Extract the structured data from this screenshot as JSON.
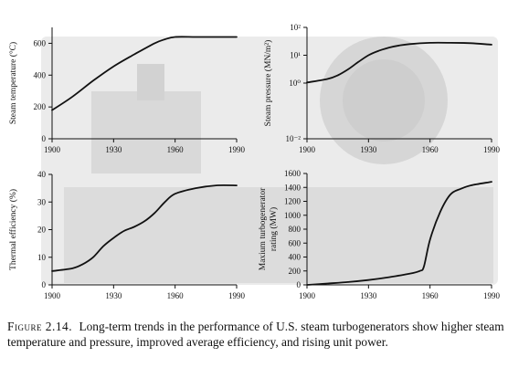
{
  "chart_data": [
    {
      "type": "line",
      "title": "",
      "xlabel": "",
      "ylabel": "Steam temperature (°C)",
      "xlim": [
        1900,
        1990
      ],
      "ylim": [
        0,
        700
      ],
      "x_ticks": [
        "1900",
        "1930",
        "1960",
        "1990"
      ],
      "y_ticks": [
        "0",
        "200",
        "400",
        "600"
      ],
      "series": [
        {
          "x": [
            1900,
            1910,
            1920,
            1930,
            1940,
            1950,
            1955,
            1960,
            1970,
            1980,
            1990
          ],
          "y": [
            180,
            265,
            365,
            455,
            530,
            600,
            625,
            640,
            640,
            640,
            640
          ]
        }
      ]
    },
    {
      "type": "line",
      "scale_y": "log",
      "title": "",
      "xlabel": "",
      "ylabel": "Steam pressure (MN/m²)",
      "xlim": [
        1900,
        1990
      ],
      "ylim": [
        0.01,
        100
      ],
      "x_ticks": [
        "1900",
        "1930",
        "1960",
        "1990"
      ],
      "y_ticks": [
        "10⁻²",
        "10⁰",
        "10¹",
        "10²"
      ],
      "series": [
        {
          "x": [
            1900,
            1910,
            1915,
            1920,
            1925,
            1930,
            1935,
            1940,
            1945,
            1950,
            1960,
            1970,
            1980,
            1990
          ],
          "y": [
            1.05,
            1.4,
            1.9,
            3.1,
            5.7,
            10,
            14.5,
            18.8,
            22.4,
            25.1,
            28,
            28,
            27,
            24
          ]
        }
      ]
    },
    {
      "type": "line",
      "title": "",
      "xlabel": "",
      "ylabel": "Thermal efficiency (%)",
      "xlim": [
        1900,
        1990
      ],
      "ylim": [
        0,
        40
      ],
      "x_ticks": [
        "1900",
        "1930",
        "1960",
        "1990"
      ],
      "y_ticks": [
        "0",
        "10",
        "20",
        "30",
        "40"
      ],
      "series": [
        {
          "x": [
            1900,
            1910,
            1915,
            1920,
            1925,
            1930,
            1935,
            1940,
            1945,
            1950,
            1955,
            1960,
            1970,
            1980,
            1990
          ],
          "y": [
            5,
            6,
            7.5,
            10,
            14,
            17,
            19.5,
            21,
            23,
            26,
            30,
            33,
            35,
            36,
            36
          ]
        }
      ]
    },
    {
      "type": "line",
      "title": "",
      "xlabel": "",
      "ylabel": "Maxium turbogenerator rating (MW)",
      "xlim": [
        1900,
        1990
      ],
      "ylim": [
        0,
        1600
      ],
      "x_ticks": [
        "1900",
        "1930",
        "1960",
        "1990"
      ],
      "y_ticks": [
        "0",
        "200",
        "400",
        "600",
        "800",
        "1000",
        "1200",
        "1400",
        "1600"
      ],
      "series": [
        {
          "x": [
            1900,
            1910,
            1920,
            1930,
            1940,
            1950,
            1955,
            1957,
            1960,
            1965,
            1970,
            1975,
            1980,
            1990
          ],
          "y": [
            0,
            20,
            40,
            70,
            110,
            160,
            200,
            260,
            650,
            1050,
            1300,
            1380,
            1430,
            1480
          ]
        }
      ]
    }
  ],
  "caption": {
    "label": "Figure 2.14.",
    "text": "Long-term trends in the performance of U.S. steam turbogenerators show higher steam temperature and pressure, improved average efficiency, and rising unit power."
  }
}
